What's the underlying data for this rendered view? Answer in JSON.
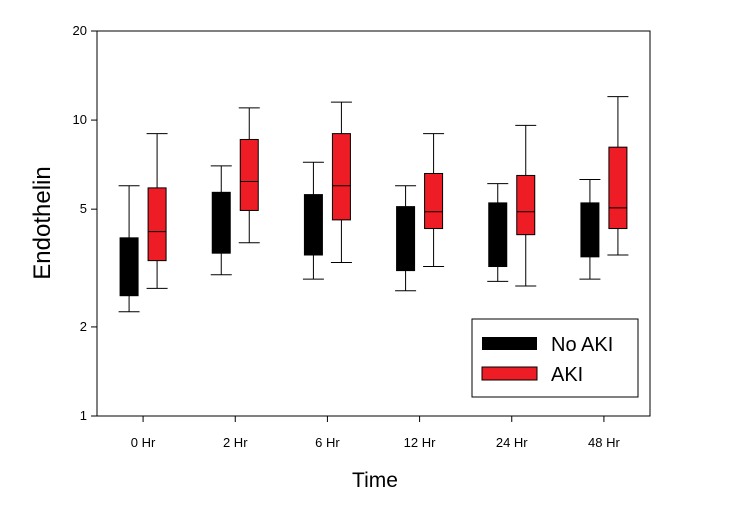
{
  "chart_data": {
    "type": "boxplot",
    "xlabel": "Time",
    "ylabel": "Endothelin",
    "yscale": "log",
    "ylim": [
      1,
      20
    ],
    "yticks": [
      1,
      2,
      5,
      10,
      20
    ],
    "grid": false,
    "legend_position": "bottom-right",
    "categories": [
      "0 Hr",
      "2 Hr",
      "6 Hr",
      "12 Hr",
      "24 Hr",
      "48 Hr"
    ],
    "series": [
      {
        "name": "No AKI",
        "color": "#000000",
        "boxes": [
          {
            "whisker_low": 2.25,
            "q1": 2.55,
            "median": 3.05,
            "q3": 4.0,
            "whisker_high": 6.0
          },
          {
            "whisker_low": 3.0,
            "q1": 3.55,
            "median": 4.3,
            "q3": 5.7,
            "whisker_high": 7.0
          },
          {
            "whisker_low": 2.9,
            "q1": 3.5,
            "median": 4.3,
            "q3": 5.6,
            "whisker_high": 7.2
          },
          {
            "whisker_low": 2.65,
            "q1": 3.1,
            "median": 3.9,
            "q3": 5.1,
            "whisker_high": 6.0
          },
          {
            "whisker_low": 2.85,
            "q1": 3.2,
            "median": 4.1,
            "q3": 5.25,
            "whisker_high": 6.1
          },
          {
            "whisker_low": 2.9,
            "q1": 3.45,
            "median": 4.2,
            "q3": 5.25,
            "whisker_high": 6.3
          }
        ]
      },
      {
        "name": "AKI",
        "color": "#ee1c24",
        "boxes": [
          {
            "whisker_low": 2.7,
            "q1": 3.35,
            "median": 4.2,
            "q3": 5.9,
            "whisker_high": 9.0
          },
          {
            "whisker_low": 3.85,
            "q1": 4.95,
            "median": 6.2,
            "q3": 8.6,
            "whisker_high": 11.0
          },
          {
            "whisker_low": 3.3,
            "q1": 4.6,
            "median": 6.0,
            "q3": 9.0,
            "whisker_high": 11.5
          },
          {
            "whisker_low": 3.2,
            "q1": 4.3,
            "median": 4.9,
            "q3": 6.6,
            "whisker_high": 9.0
          },
          {
            "whisker_low": 2.75,
            "q1": 4.1,
            "median": 4.9,
            "q3": 6.5,
            "whisker_high": 9.6
          },
          {
            "whisker_low": 3.5,
            "q1": 4.3,
            "median": 5.05,
            "q3": 8.1,
            "whisker_high": 12.0
          }
        ]
      }
    ]
  }
}
